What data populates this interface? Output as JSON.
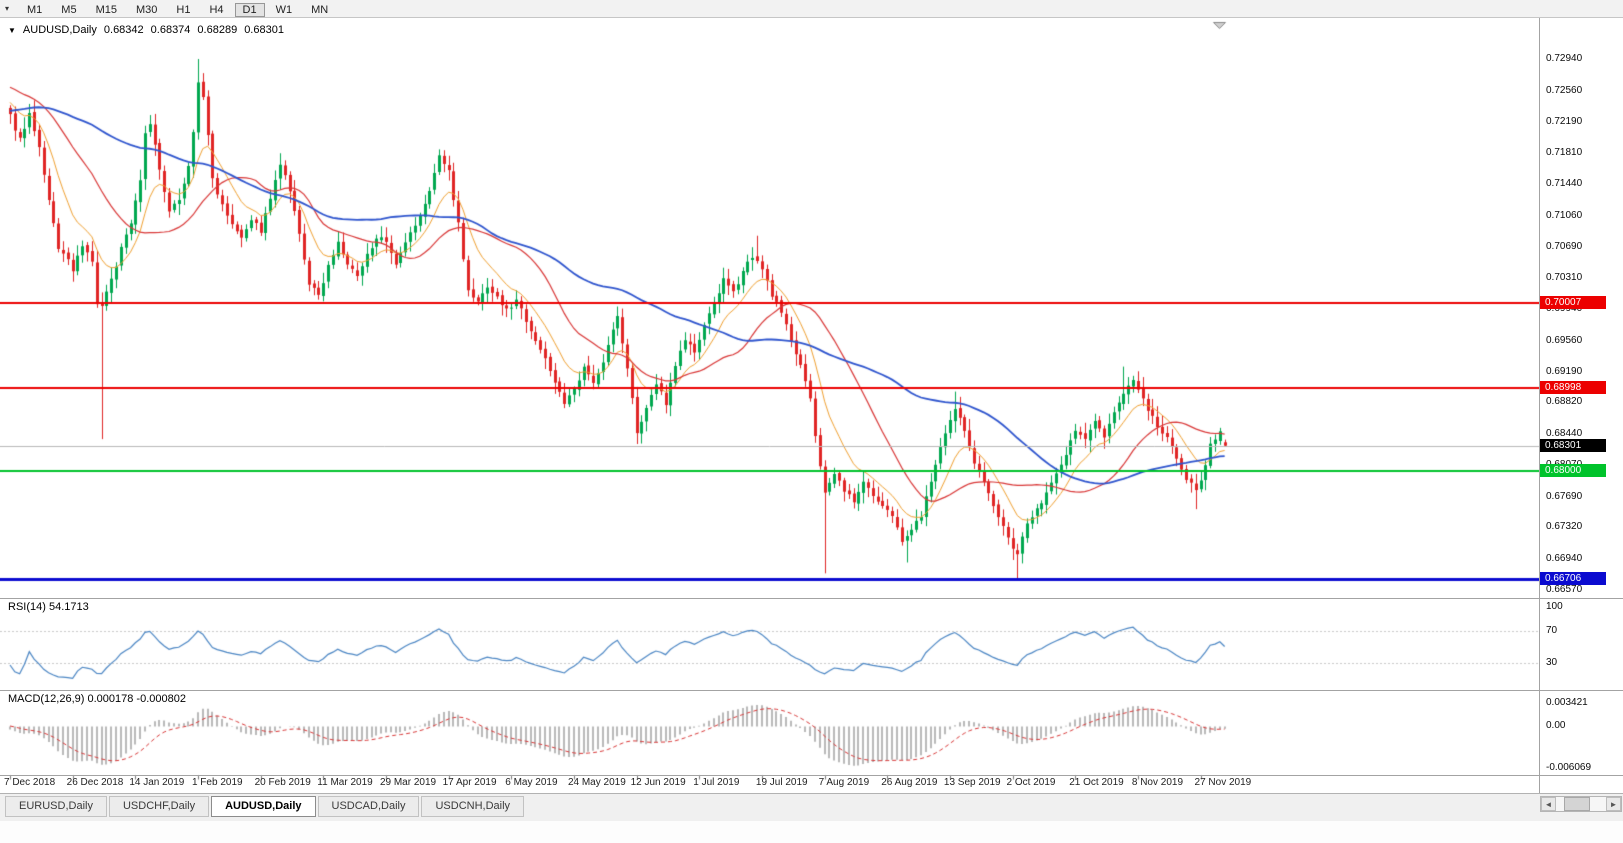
{
  "toolbar": {
    "menu_icon": "▾",
    "timeframes": [
      "M1",
      "M5",
      "M15",
      "M30",
      "H1",
      "H4",
      "D1",
      "W1",
      "MN"
    ],
    "active_timeframe": "D1"
  },
  "chart_header": {
    "toggle_icon": "▼",
    "symbol": "AUDUSD,Daily",
    "open": "0.68342",
    "high": "0.68374",
    "low": "0.68289",
    "close": "0.68301"
  },
  "tabs": {
    "items": [
      "EURUSD,Daily",
      "USDCHF,Daily",
      "AUDUSD,Daily",
      "USDCAD,Daily",
      "USDCNH,Daily"
    ],
    "active": "AUDUSD,Daily"
  },
  "scrollbar": {
    "left_arrow": "◄",
    "right_arrow": "►"
  },
  "chart_data": {
    "type": "candlestick",
    "symbol": "AUDUSD",
    "timeframe": "Daily",
    "bar_count": 253,
    "bars_per_date_label": 13,
    "candle_colors": {
      "up": "#00A84F",
      "down": "#E02525"
    },
    "x_dates": [
      "7 Dec 2018",
      "26 Dec 2018",
      "14 Jan 2019",
      "1 Feb 2019",
      "20 Feb 2019",
      "11 Mar 2019",
      "29 Mar 2019",
      "17 Apr 2019",
      "6 May 2019",
      "24 May 2019",
      "12 Jun 2019",
      "1 Jul 2019",
      "19 Jul 2019",
      "7 Aug 2019",
      "26 Aug 2019",
      "13 Sep 2019",
      "2 Oct 2019",
      "21 Oct 2019",
      "8 Nov 2019",
      "27 Nov 2019"
    ],
    "y_ticks": [
      "0.72940",
      "0.72560",
      "0.72190",
      "0.71810",
      "0.71440",
      "0.71060",
      "0.70690",
      "0.70310",
      "0.69940",
      "0.69560",
      "0.69190",
      "0.68820",
      "0.68440",
      "0.68070",
      "0.67690",
      "0.67320",
      "0.66940",
      "0.66570"
    ],
    "warmup": {
      "bars": 60,
      "path": [
        [
          0,
          0.715
        ],
        [
          40,
          0.7285
        ],
        [
          59,
          0.7232
        ]
      ]
    },
    "price_anchors": [
      [
        0,
        0.7225
      ],
      [
        2,
        0.7198
      ],
      [
        4,
        0.7228
      ],
      [
        6,
        0.7185
      ],
      [
        8,
        0.7122
      ],
      [
        10,
        0.7068
      ],
      [
        13,
        0.7042
      ],
      [
        15,
        0.7068
      ],
      [
        17,
        0.7052
      ],
      [
        18,
        0.6998
      ],
      [
        19,
        0.6999
      ],
      [
        21,
        0.7028
      ],
      [
        23,
        0.7068
      ],
      [
        25,
        0.7098
      ],
      [
        27,
        0.715
      ],
      [
        28,
        0.7205
      ],
      [
        29,
        0.7218
      ],
      [
        31,
        0.716
      ],
      [
        33,
        0.7108
      ],
      [
        35,
        0.7128
      ],
      [
        37,
        0.7165
      ],
      [
        38,
        0.7205
      ],
      [
        39,
        0.7268
      ],
      [
        40,
        0.725
      ],
      [
        42,
        0.715
      ],
      [
        44,
        0.712
      ],
      [
        46,
        0.7098
      ],
      [
        48,
        0.7082
      ],
      [
        50,
        0.7102
      ],
      [
        52,
        0.7088
      ],
      [
        54,
        0.7125
      ],
      [
        56,
        0.7168
      ],
      [
        58,
        0.7135
      ],
      [
        60,
        0.7082
      ],
      [
        62,
        0.7025
      ],
      [
        64,
        0.7008
      ],
      [
        66,
        0.7048
      ],
      [
        68,
        0.7072
      ],
      [
        70,
        0.7048
      ],
      [
        72,
        0.7032
      ],
      [
        74,
        0.7058
      ],
      [
        76,
        0.7082
      ],
      [
        78,
        0.7072
      ],
      [
        80,
        0.7045
      ],
      [
        82,
        0.7072
      ],
      [
        84,
        0.7095
      ],
      [
        86,
        0.7118
      ],
      [
        88,
        0.7158
      ],
      [
        89,
        0.7178
      ],
      [
        91,
        0.7158
      ],
      [
        93,
        0.7098
      ],
      [
        95,
        0.7015
      ],
      [
        97,
        0.7002
      ],
      [
        99,
        0.7022
      ],
      [
        101,
        0.7008
      ],
      [
        103,
        0.6992
      ],
      [
        105,
        0.7005
      ],
      [
        107,
        0.6982
      ],
      [
        109,
        0.6958
      ],
      [
        111,
        0.6932
      ],
      [
        113,
        0.6908
      ],
      [
        115,
        0.6882
      ],
      [
        117,
        0.6895
      ],
      [
        119,
        0.6922
      ],
      [
        121,
        0.6908
      ],
      [
        123,
        0.6932
      ],
      [
        125,
        0.6968
      ],
      [
        126,
        0.6985
      ],
      [
        128,
        0.6922
      ],
      [
        130,
        0.6848
      ],
      [
        132,
        0.6872
      ],
      [
        134,
        0.6905
      ],
      [
        136,
        0.6882
      ],
      [
        138,
        0.6928
      ],
      [
        140,
        0.6958
      ],
      [
        142,
        0.6942
      ],
      [
        144,
        0.6972
      ],
      [
        146,
        0.7002
      ],
      [
        148,
        0.7028
      ],
      [
        150,
        0.7012
      ],
      [
        152,
        0.7042
      ],
      [
        154,
        0.7058
      ],
      [
        156,
        0.704
      ],
      [
        158,
        0.7012
      ],
      [
        160,
        0.6988
      ],
      [
        162,
        0.6958
      ],
      [
        164,
        0.6928
      ],
      [
        166,
        0.6885
      ],
      [
        168,
        0.6802
      ],
      [
        169,
        0.6775
      ],
      [
        171,
        0.6795
      ],
      [
        173,
        0.6778
      ],
      [
        175,
        0.6762
      ],
      [
        177,
        0.6788
      ],
      [
        179,
        0.6768
      ],
      [
        181,
        0.6755
      ],
      [
        183,
        0.6748
      ],
      [
        185,
        0.6718
      ],
      [
        187,
        0.6728
      ],
      [
        189,
        0.6748
      ],
      [
        191,
        0.6788
      ],
      [
        193,
        0.6825
      ],
      [
        195,
        0.6858
      ],
      [
        196,
        0.6875
      ],
      [
        198,
        0.6848
      ],
      [
        200,
        0.6812
      ],
      [
        202,
        0.6788
      ],
      [
        204,
        0.6755
      ],
      [
        206,
        0.6732
      ],
      [
        208,
        0.6708
      ],
      [
        209,
        0.6702
      ],
      [
        211,
        0.6738
      ],
      [
        213,
        0.6752
      ],
      [
        215,
        0.6775
      ],
      [
        217,
        0.6798
      ],
      [
        219,
        0.6822
      ],
      [
        221,
        0.6848
      ],
      [
        223,
        0.6838
      ],
      [
        225,
        0.6858
      ],
      [
        227,
        0.6842
      ],
      [
        229,
        0.6872
      ],
      [
        231,
        0.6892
      ],
      [
        233,
        0.6908
      ],
      [
        234,
        0.6895
      ],
      [
        236,
        0.6872
      ],
      [
        238,
        0.6855
      ],
      [
        240,
        0.6838
      ],
      [
        242,
        0.6815
      ],
      [
        244,
        0.6792
      ],
      [
        246,
        0.6775
      ],
      [
        247,
        0.6788
      ],
      [
        249,
        0.6832
      ],
      [
        251,
        0.6848
      ],
      [
        252,
        0.683
      ]
    ],
    "extremes": [
      [
        19,
        "low",
        0.6838
      ],
      [
        39,
        "high",
        0.7294
      ],
      [
        155,
        "high",
        0.7082
      ],
      [
        169,
        "low",
        0.6677
      ],
      [
        186,
        "low",
        0.669
      ],
      [
        196,
        "high",
        0.6895
      ],
      [
        209,
        "low",
        0.667
      ],
      [
        231,
        "high",
        0.6925
      ],
      [
        246,
        "low",
        0.6754
      ]
    ],
    "last_bar": {
      "open": 0.68342,
      "high": 0.68374,
      "low": 0.68289,
      "close": 0.68301
    },
    "horizontal_lines": [
      {
        "price": 0.70007,
        "label": "0.70007",
        "color": "#EC0000",
        "width": 2
      },
      {
        "price": 0.68998,
        "label": "0.68998",
        "color": "#EC0000",
        "width": 2
      },
      {
        "price": 0.68,
        "label": "0.68000",
        "color": "#00C32B",
        "width": 2
      },
      {
        "price": 0.66706,
        "label": "0.66706",
        "color": "#0B0BD0",
        "width": 3
      }
    ],
    "bid_line": {
      "price": 0.68301,
      "label": "0.68301",
      "color": "#000000",
      "line_color": "#B8B8B8"
    },
    "moving_averages": [
      {
        "type": "ema",
        "period": 10,
        "color": "#F0A030",
        "width": 1
      },
      {
        "type": "sma",
        "period": 24,
        "color": "#D93636",
        "width": 1.2
      },
      {
        "type": "sma",
        "period": 60,
        "color": "#2F55CE",
        "width": 1.8
      }
    ],
    "rsi": {
      "label": "RSI(14) 54.1713",
      "period": 14,
      "value": 54.1713,
      "levels": [
        70,
        30
      ],
      "axis_labels": [
        "100",
        "70",
        "30"
      ],
      "range": [
        0,
        100
      ],
      "color": "#4B86C4"
    },
    "macd": {
      "label": "MACD(12,26,9) 0.000178 -0.000802",
      "fast": 12,
      "slow": 26,
      "signal_period": 9,
      "main_value": 0.000178,
      "signal_value": -0.000802,
      "axis_labels": [
        "0.003421",
        "0.00",
        "-0.006069"
      ],
      "axis_max": 0.003421,
      "axis_min": -0.006069,
      "hist_color": "#B9B9B9",
      "signal_color": "#D93636"
    }
  }
}
